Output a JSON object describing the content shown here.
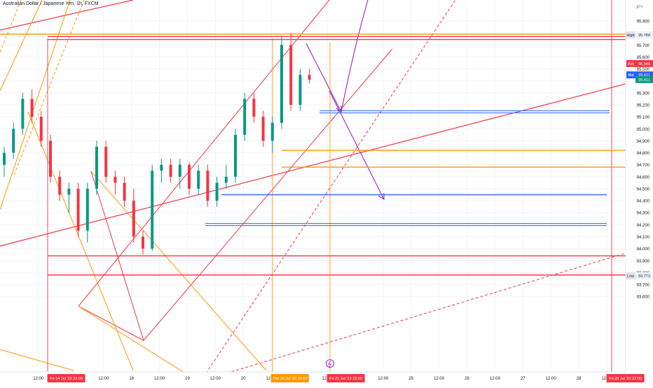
{
  "chart_data": {
    "type": "candlestick",
    "title": "Australian Dollar / Japanese Yen, 1h, FXCM",
    "currency": "JPY",
    "ylim": [
      93.6,
      96.0
    ],
    "y_ticks": [
      95.9,
      95.8,
      95.7,
      95.6,
      95.5,
      95.4,
      95.3,
      95.2,
      95.1,
      95.0,
      94.9,
      94.8,
      94.7,
      94.6,
      94.5,
      94.4,
      94.3,
      94.2,
      94.1,
      94.0,
      93.9,
      93.8,
      93.7,
      93.6
    ],
    "x_ticks": [
      {
        "label": "12:00",
        "t": -1
      },
      {
        "label": "12:00",
        "t": 6
      },
      {
        "label": "18",
        "t": 9
      },
      {
        "label": "12:00",
        "t": 12
      },
      {
        "label": "19",
        "t": 15
      },
      {
        "label": "12:00",
        "t": 18
      },
      {
        "label": "20",
        "t": 21
      },
      {
        "label": "12:00",
        "t": 24
      },
      {
        "label": "12:00",
        "t": 30
      },
      {
        "label": "12:00",
        "t": 36
      },
      {
        "label": "25",
        "t": 39
      },
      {
        "label": "12:00",
        "t": 42
      },
      {
        "label": "26",
        "t": 45
      },
      {
        "label": "12:00",
        "t": 48
      },
      {
        "label": "27",
        "t": 51
      },
      {
        "label": "12:00",
        "t": 54
      },
      {
        "label": "28",
        "t": 57
      },
      {
        "label": "12:00",
        "t": 60
      }
    ],
    "time_badges": [
      {
        "label": "Fri 14 Jul '23   22:00",
        "t": 2,
        "color": "#f23645"
      },
      {
        "label": "Thu 20 Jul '23   22:00",
        "t": 26,
        "color": "#ff9800"
      },
      {
        "label": "Fri 21 Jul '23   22:00",
        "t": 32,
        "color": "#f23645"
      },
      {
        "label": "Fri 28 Jul '23   22:00",
        "t": 62,
        "color": "#f23645"
      }
    ],
    "price_badges": [
      {
        "label": "High",
        "value": "95.784",
        "y": 95.784,
        "type": "grey"
      },
      {
        "label": "Ask",
        "value": "95.545",
        "y": 95.545,
        "type": "red"
      },
      {
        "label": "Bid",
        "value": "95.411",
        "y": 95.45,
        "type": "blue"
      },
      {
        "label": "",
        "value": "95.411",
        "y": 95.411,
        "type": "green"
      },
      {
        "label": "Low",
        "value": "93.773",
        "y": 93.773,
        "type": "grey"
      }
    ],
    "candles": [
      [
        94.7,
        94.85,
        94.6,
        94.8
      ],
      [
        94.8,
        95.05,
        94.75,
        95.0
      ],
      [
        95.0,
        95.3,
        94.95,
        95.25
      ],
      [
        95.25,
        95.33,
        95.05,
        95.1
      ],
      [
        95.1,
        95.15,
        94.85,
        94.9
      ],
      [
        94.9,
        94.95,
        94.55,
        94.6
      ],
      [
        94.6,
        94.65,
        94.4,
        94.45
      ],
      [
        94.45,
        94.55,
        94.3,
        94.5
      ],
      [
        94.5,
        94.55,
        94.1,
        94.15
      ],
      [
        94.15,
        94.55,
        94.05,
        94.5
      ],
      [
        94.5,
        94.9,
        94.45,
        94.85
      ],
      [
        94.85,
        94.9,
        94.55,
        94.6
      ],
      [
        94.6,
        94.65,
        94.45,
        94.55
      ],
      [
        94.55,
        94.6,
        94.35,
        94.4
      ],
      [
        94.4,
        94.5,
        94.05,
        94.1
      ],
      [
        94.1,
        94.15,
        93.95,
        94.0
      ],
      [
        94.0,
        94.7,
        93.98,
        94.65
      ],
      [
        94.65,
        94.75,
        94.55,
        94.7
      ],
      [
        94.7,
        94.75,
        94.55,
        94.6
      ],
      [
        94.6,
        94.75,
        94.5,
        94.7
      ],
      [
        94.7,
        94.72,
        94.45,
        94.5
      ],
      [
        94.5,
        94.7,
        94.45,
        94.65
      ],
      [
        94.65,
        94.7,
        94.35,
        94.4
      ],
      [
        94.4,
        94.6,
        94.35,
        94.55
      ],
      [
        94.55,
        94.7,
        94.5,
        94.6
      ],
      [
        94.6,
        95.0,
        94.55,
        94.95
      ],
      [
        94.95,
        95.3,
        94.9,
        95.25
      ],
      [
        95.25,
        95.3,
        95.05,
        95.1
      ],
      [
        95.1,
        95.15,
        94.85,
        94.9
      ],
      [
        94.9,
        95.1,
        94.8,
        95.05
      ],
      [
        95.05,
        95.78,
        95.0,
        95.7
      ],
      [
        95.7,
        95.8,
        95.15,
        95.2
      ],
      [
        95.2,
        95.5,
        95.15,
        95.45
      ],
      [
        95.45,
        95.5,
        95.38,
        95.41
      ]
    ],
    "ref_lines": [
      {
        "kind": "hline",
        "y": 95.79,
        "x1": 0,
        "x2": 893,
        "color": "#ff9800"
      },
      {
        "kind": "hline",
        "y": 95.77,
        "x1": 68,
        "x2": 893,
        "color": "#f23645"
      },
      {
        "kind": "hline",
        "y": 95.745,
        "x1": 68,
        "x2": 893,
        "color": "#f23645"
      },
      {
        "kind": "hline",
        "y": 95.15,
        "x1": 456,
        "x2": 870,
        "color": "#2962ff",
        "double": true
      },
      {
        "kind": "hline",
        "y": 94.82,
        "x1": 402,
        "x2": 893,
        "color": "#ff9800"
      },
      {
        "kind": "hline",
        "y": 94.68,
        "x1": 402,
        "x2": 893,
        "color": "#ff9800"
      },
      {
        "kind": "hline",
        "y": 94.45,
        "x1": 316,
        "x2": 866,
        "color": "#2962ff"
      },
      {
        "kind": "hline",
        "y": 94.21,
        "x1": 293,
        "x2": 866,
        "color": "#2962ff",
        "double": true
      },
      {
        "kind": "hline",
        "y": 93.94,
        "x1": 68,
        "x2": 893,
        "color": "#f23645"
      },
      {
        "kind": "hline",
        "y": 93.78,
        "x1": 68,
        "x2": 893,
        "color": "#f23645"
      }
    ]
  }
}
